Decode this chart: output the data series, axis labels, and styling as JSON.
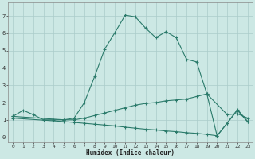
{
  "title": "",
  "xlabel": "Humidex (Indice chaleur)",
  "bg_color": "#cce8e4",
  "grid_color": "#aaccca",
  "line_color": "#2a7a6a",
  "xlim": [
    -0.5,
    23.5
  ],
  "ylim": [
    -0.3,
    7.8
  ],
  "xticks": [
    0,
    1,
    2,
    3,
    4,
    5,
    6,
    7,
    8,
    9,
    10,
    11,
    12,
    13,
    14,
    15,
    16,
    17,
    18,
    19,
    20,
    21,
    22,
    23
  ],
  "yticks": [
    0,
    1,
    2,
    3,
    4,
    5,
    6,
    7
  ],
  "line1_x": [
    0,
    1,
    2,
    3,
    4,
    5,
    6,
    7,
    8,
    9,
    10,
    11,
    12,
    13,
    14,
    15,
    16,
    17,
    18,
    19,
    20,
    21,
    22,
    23
  ],
  "line1_y": [
    1.2,
    1.55,
    1.3,
    1.0,
    1.0,
    1.0,
    1.1,
    2.0,
    3.5,
    5.1,
    6.05,
    7.05,
    6.95,
    6.3,
    5.75,
    6.1,
    5.75,
    4.5,
    4.35,
    2.5,
    0.08,
    0.82,
    1.6,
    0.9
  ],
  "line2_x": [
    0,
    5,
    6,
    7,
    8,
    9,
    10,
    11,
    12,
    13,
    14,
    15,
    16,
    17,
    18,
    19,
    21,
    22,
    23
  ],
  "line2_y": [
    1.2,
    1.0,
    1.0,
    1.1,
    1.25,
    1.4,
    1.55,
    1.7,
    1.85,
    1.95,
    2.0,
    2.1,
    2.15,
    2.2,
    2.35,
    2.5,
    1.3,
    1.35,
    1.1
  ],
  "line3_x": [
    0,
    5,
    6,
    7,
    8,
    9,
    10,
    11,
    12,
    13,
    14,
    15,
    16,
    17,
    18,
    19,
    20,
    21,
    22,
    23
  ],
  "line3_y": [
    1.1,
    0.9,
    0.85,
    0.8,
    0.75,
    0.7,
    0.65,
    0.58,
    0.52,
    0.46,
    0.42,
    0.36,
    0.32,
    0.26,
    0.22,
    0.16,
    0.08,
    0.82,
    1.55,
    0.88
  ]
}
